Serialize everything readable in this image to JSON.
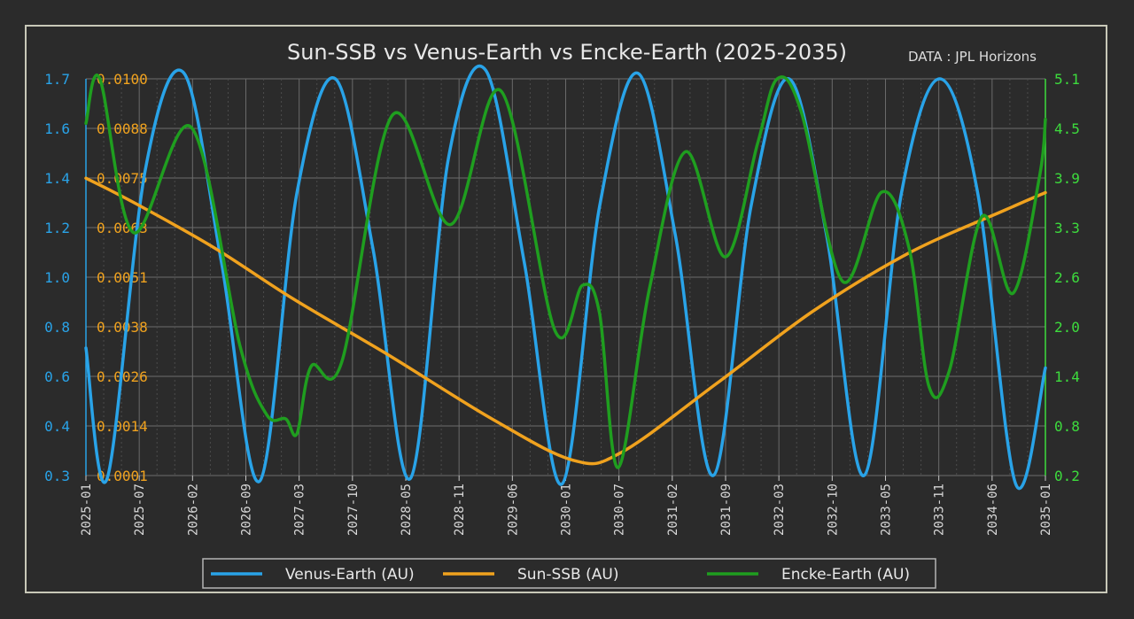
{
  "chart_data": {
    "type": "line",
    "title": "Sun-SSB vs Venus-Earth vs Encke-Earth (2025-2035)",
    "source": "DATA : JPL Horizons",
    "x_ticks": [
      "2025-01",
      "2025-07",
      "2026-02",
      "2026-09",
      "2027-03",
      "2027-10",
      "2028-05",
      "2028-11",
      "2029-06",
      "2030-01",
      "2030-07",
      "2031-02",
      "2031-09",
      "2032-03",
      "2032-10",
      "2033-05",
      "2033-11",
      "2034-06",
      "2035-01"
    ],
    "xlim": [
      "2025-01-01",
      "2035-01-01"
    ],
    "axes": {
      "left_outer": {
        "color": "#29a3e8",
        "ticks": [
          "0.3",
          "0.4",
          "0.6",
          "0.8",
          "1.0",
          "1.2",
          "1.4",
          "1.6",
          "1.7"
        ],
        "ylim": [
          0.3,
          1.7
        ]
      },
      "left_inner": {
        "color": "#f0a21e",
        "ticks": [
          "0.0001",
          "0.0014",
          "0.0026",
          "0.0038",
          "0.0051",
          "0.0063",
          "0.0075",
          "0.0088",
          "0.0100"
        ],
        "ylim": [
          0.0001,
          0.01
        ]
      },
      "right": {
        "color": "#3ddc3d",
        "ticks": [
          "0.2",
          "0.8",
          "1.4",
          "2.0",
          "2.6",
          "3.3",
          "3.9",
          "4.5",
          "5.1"
        ],
        "ylim": [
          0.2,
          5.1
        ]
      }
    },
    "grid": true,
    "legend_position": "bottom-center",
    "series": [
      {
        "name": "Venus-Earth (AU)",
        "axis": "left_outer",
        "color": "#29a3e8",
        "points": [
          [
            "2025-01-01",
            0.75
          ],
          [
            "2025-03-23",
            0.29
          ],
          [
            "2025-08-15",
            1.38
          ],
          [
            "2026-01-09",
            1.72
          ],
          [
            "2026-06-01",
            1.05
          ],
          [
            "2026-10-24",
            0.28
          ],
          [
            "2027-03-15",
            1.3
          ],
          [
            "2027-08-08",
            1.7
          ],
          [
            "2027-12-29",
            1.1
          ],
          [
            "2028-05-20",
            0.29
          ],
          [
            "2028-10-12",
            1.42
          ],
          [
            "2029-03-03",
            1.73
          ],
          [
            "2029-07-28",
            1.05
          ],
          [
            "2029-12-18",
            0.27
          ],
          [
            "2030-05-10",
            1.25
          ],
          [
            "2030-10-02",
            1.72
          ],
          [
            "2031-02-22",
            1.15
          ],
          [
            "2031-07-16",
            0.3
          ],
          [
            "2031-12-07",
            1.25
          ],
          [
            "2032-04-30",
            1.7
          ],
          [
            "2032-09-20",
            1.15
          ],
          [
            "2033-02-10",
            0.3
          ],
          [
            "2033-07-03",
            1.3
          ],
          [
            "2033-11-25",
            1.7
          ],
          [
            "2034-04-18",
            1.3
          ],
          [
            "2034-09-10",
            0.27
          ],
          [
            "2035-01-01",
            0.68
          ]
        ]
      },
      {
        "name": "Sun-SSB (AU)",
        "axis": "left_inner",
        "color": "#f0a21e",
        "points": [
          [
            "2025-01-01",
            0.00752
          ],
          [
            "2025-06-30",
            0.00692
          ],
          [
            "2026-04-30",
            0.0058
          ],
          [
            "2027-02-28",
            0.00451
          ],
          [
            "2028-02-28",
            0.0031
          ],
          [
            "2029-03-30",
            0.0015
          ],
          [
            "2030-01-30",
            0.00048
          ],
          [
            "2030-07-30",
            0.00067
          ],
          [
            "2031-07-30",
            0.0024
          ],
          [
            "2032-07-30",
            0.0042
          ],
          [
            "2033-07-30",
            0.00565
          ],
          [
            "2034-07-30",
            0.00672
          ],
          [
            "2035-01-01",
            0.00716
          ]
        ]
      },
      {
        "name": "Encke-Earth (AU)",
        "axis": "right",
        "color": "#1f9e1f",
        "points": [
          [
            "2025-01-01",
            4.55
          ],
          [
            "2025-02-23",
            5.1
          ],
          [
            "2025-07-01",
            3.2
          ],
          [
            "2026-02-06",
            4.5
          ],
          [
            "2026-08-10",
            1.8
          ],
          [
            "2026-11-20",
            0.95
          ],
          [
            "2027-01-31",
            0.9
          ],
          [
            "2027-03-15",
            0.72
          ],
          [
            "2027-05-08",
            1.55
          ],
          [
            "2027-09-01",
            1.6
          ],
          [
            "2028-03-12",
            4.65
          ],
          [
            "2028-10-20",
            3.3
          ],
          [
            "2029-04-30",
            4.95
          ],
          [
            "2029-11-20",
            2.0
          ],
          [
            "2030-03-06",
            2.55
          ],
          [
            "2030-05-10",
            2.2
          ],
          [
            "2030-07-20",
            0.3
          ],
          [
            "2030-11-15",
            2.5
          ],
          [
            "2031-04-02",
            4.2
          ],
          [
            "2031-08-31",
            2.9
          ],
          [
            "2032-01-01",
            4.3
          ],
          [
            "2032-03-16",
            5.1
          ],
          [
            "2032-06-15",
            4.7
          ],
          [
            "2032-11-20",
            2.6
          ],
          [
            "2033-04-18",
            3.7
          ],
          [
            "2033-08-01",
            3.0
          ],
          [
            "2033-10-15",
            1.3
          ],
          [
            "2034-01-01",
            1.5
          ],
          [
            "2034-05-05",
            3.4
          ],
          [
            "2034-08-30",
            2.45
          ],
          [
            "2034-12-10",
            3.9
          ],
          [
            "2035-01-01",
            4.6
          ]
        ]
      }
    ]
  }
}
